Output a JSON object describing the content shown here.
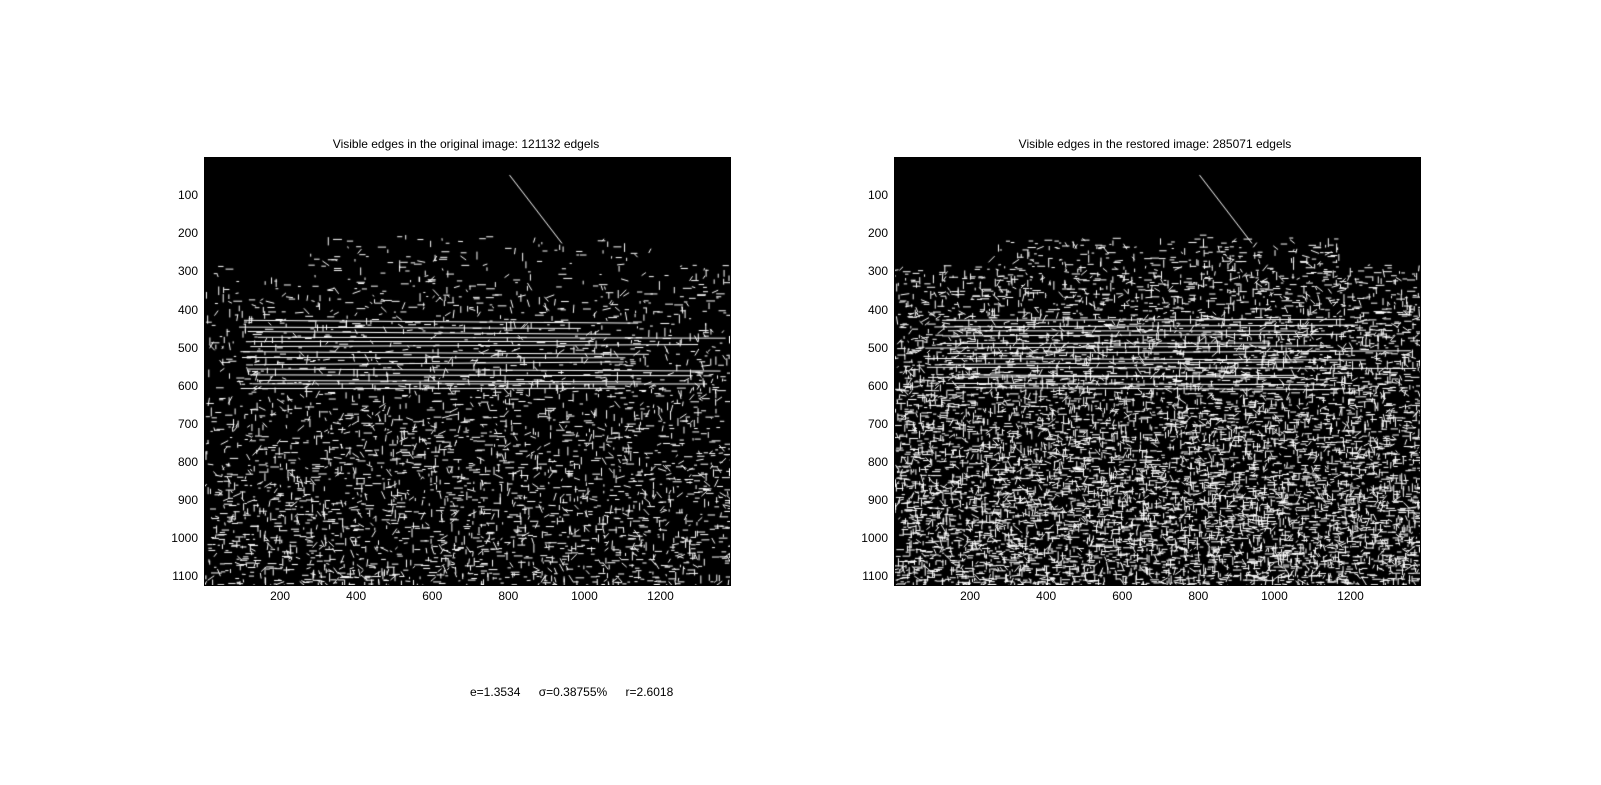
{
  "panels": [
    {
      "title": "Visible edges in the original image: 121132 edgels",
      "yticks": [
        "100",
        "200",
        "300",
        "400",
        "500",
        "600",
        "700",
        "800",
        "900",
        "1000",
        "1100"
      ],
      "xticks": [
        "200",
        "400",
        "600",
        "800",
        "1000",
        "1200"
      ],
      "edge_density": 0.13
    },
    {
      "title": "Visible edges in the restored image: 285071 edgels",
      "yticks": [
        "100",
        "200",
        "300",
        "400",
        "500",
        "600",
        "700",
        "800",
        "900",
        "1000",
        "1100"
      ],
      "xticks": [
        "200",
        "400",
        "600",
        "800",
        "1000",
        "1200"
      ],
      "edge_density": 0.32
    }
  ],
  "footer": {
    "e": "e=1.3534",
    "sigma": "σ=0.38755%",
    "r": "r=2.6018"
  },
  "colors": {
    "background": "#000000",
    "edges": "#ffffff",
    "page": "#ffffff"
  }
}
